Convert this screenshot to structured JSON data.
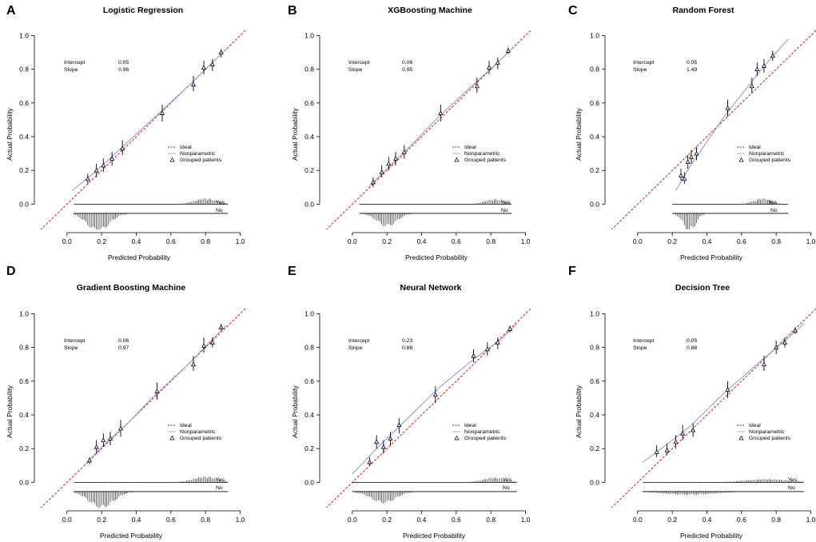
{
  "colors": {
    "ideal": "#e8292b",
    "nonparametric": "#8a93e8",
    "axis": "#000000",
    "points": "#000000",
    "legend_nonparam_swatch": "#999999"
  },
  "chart_data": [
    {
      "panel": "A",
      "type": "scatter",
      "title": "Logistic Regression",
      "xlabel": "Predicted Probability",
      "ylabel": "Actual Probability",
      "xlim": [
        -0.17,
        1.03
      ],
      "ylim": [
        -0.15,
        1.04
      ],
      "xticks": [
        "0.0",
        "0.2",
        "0.4",
        "0.6",
        "0.8",
        "1.0"
      ],
      "yticks": [
        "0.0",
        "0.2",
        "0.4",
        "0.6",
        "0.8",
        "1.0"
      ],
      "stats": {
        "intercept_label": "Intercept",
        "intercept_value": "0.05",
        "slope_label": "Slope",
        "slope_value": "0.96"
      },
      "legend": {
        "ideal": "Ideal",
        "nonparametric": "Nonparametric",
        "grouped": "Grouped patients"
      },
      "rug_labels": {
        "yes": "Yes",
        "no": "No"
      },
      "points": [
        {
          "x": 0.12,
          "y": 0.15,
          "lo": 0.12,
          "hi": 0.18
        },
        {
          "x": 0.17,
          "y": 0.2,
          "lo": 0.16,
          "hi": 0.24
        },
        {
          "x": 0.21,
          "y": 0.23,
          "lo": 0.19,
          "hi": 0.27
        },
        {
          "x": 0.26,
          "y": 0.27,
          "lo": 0.23,
          "hi": 0.31
        },
        {
          "x": 0.32,
          "y": 0.33,
          "lo": 0.29,
          "hi": 0.38
        },
        {
          "x": 0.55,
          "y": 0.54,
          "lo": 0.49,
          "hi": 0.59
        },
        {
          "x": 0.73,
          "y": 0.71,
          "lo": 0.67,
          "hi": 0.76
        },
        {
          "x": 0.79,
          "y": 0.81,
          "lo": 0.77,
          "hi": 0.85
        },
        {
          "x": 0.84,
          "y": 0.83,
          "lo": 0.79,
          "hi": 0.86
        },
        {
          "x": 0.89,
          "y": 0.9,
          "lo": 0.87,
          "hi": 0.92
        }
      ],
      "curve": {
        "x": [
          0.03,
          0.15,
          0.3,
          0.5,
          0.7,
          0.85,
          0.92
        ],
        "y": [
          0.08,
          0.18,
          0.32,
          0.51,
          0.7,
          0.85,
          0.92
        ]
      },
      "rug": {
        "yes_center": 0.8,
        "yes_spread": 0.09,
        "yes_amp": 0.035,
        "no_center": 0.18,
        "no_spread": 0.09,
        "no_amp": 0.11,
        "x_start": 0.04,
        "x_end": 0.93
      }
    },
    {
      "panel": "B",
      "type": "scatter",
      "title": "XGBoosting Machine",
      "xlabel": "Predicted Probability",
      "ylabel": "Actual Probability",
      "xlim": [
        -0.17,
        1.03
      ],
      "ylim": [
        -0.15,
        1.04
      ],
      "xticks": [
        "0.0",
        "0.2",
        "0.4",
        "0.6",
        "0.8",
        "1.0"
      ],
      "yticks": [
        "0.0",
        "0.2",
        "0.4",
        "0.6",
        "0.8",
        "1.0"
      ],
      "stats": {
        "intercept_label": "Intercept",
        "intercept_value": "0.06",
        "slope_label": "Slope",
        "slope_value": "0.95"
      },
      "legend": {
        "ideal": "Ideal",
        "nonparametric": "Nonparametric",
        "grouped": "Grouped patients"
      },
      "rug_labels": {
        "yes": "Yes",
        "no": "No"
      },
      "points": [
        {
          "x": 0.12,
          "y": 0.13,
          "lo": 0.1,
          "hi": 0.16
        },
        {
          "x": 0.17,
          "y": 0.19,
          "lo": 0.16,
          "hi": 0.23
        },
        {
          "x": 0.21,
          "y": 0.24,
          "lo": 0.2,
          "hi": 0.28
        },
        {
          "x": 0.25,
          "y": 0.27,
          "lo": 0.23,
          "hi": 0.31
        },
        {
          "x": 0.3,
          "y": 0.31,
          "lo": 0.27,
          "hi": 0.35
        },
        {
          "x": 0.51,
          "y": 0.54,
          "lo": 0.49,
          "hi": 0.59
        },
        {
          "x": 0.72,
          "y": 0.7,
          "lo": 0.66,
          "hi": 0.75
        },
        {
          "x": 0.79,
          "y": 0.81,
          "lo": 0.77,
          "hi": 0.85
        },
        {
          "x": 0.84,
          "y": 0.84,
          "lo": 0.8,
          "hi": 0.87
        },
        {
          "x": 0.9,
          "y": 0.91,
          "lo": 0.89,
          "hi": 0.93
        }
      ],
      "curve": {
        "x": [
          0.1,
          0.2,
          0.35,
          0.5,
          0.7,
          0.85,
          0.92
        ],
        "y": [
          0.11,
          0.21,
          0.36,
          0.52,
          0.71,
          0.85,
          0.92
        ]
      },
      "rug": {
        "yes_center": 0.82,
        "yes_spread": 0.08,
        "yes_amp": 0.03,
        "no_center": 0.2,
        "no_spread": 0.08,
        "no_amp": 0.08,
        "x_start": 0.04,
        "x_end": 0.92
      }
    },
    {
      "panel": "C",
      "type": "scatter",
      "title": "Random Forest",
      "xlabel": "Predicted Probability",
      "ylabel": "Actual Probability",
      "xlim": [
        -0.17,
        1.03
      ],
      "ylim": [
        -0.15,
        1.04
      ],
      "xticks": [
        "0.0",
        "0.2",
        "0.4",
        "0.6",
        "0.8",
        "1.0"
      ],
      "yticks": [
        "0.0",
        "0.2",
        "0.4",
        "0.6",
        "0.8",
        "1.0"
      ],
      "stats": {
        "intercept_label": "Intercept",
        "intercept_value": "0.05",
        "slope_label": "Slope",
        "slope_value": "1.49"
      },
      "legend": {
        "ideal": "Ideal",
        "nonparametric": "Nonparametric",
        "grouped": "Grouped patients"
      },
      "rug_labels": {
        "yes": "Yes",
        "no": "No"
      },
      "points": [
        {
          "x": 0.25,
          "y": 0.17,
          "lo": 0.14,
          "hi": 0.21
        },
        {
          "x": 0.27,
          "y": 0.15,
          "lo": 0.12,
          "hi": 0.19
        },
        {
          "x": 0.29,
          "y": 0.25,
          "lo": 0.21,
          "hi": 0.29
        },
        {
          "x": 0.31,
          "y": 0.28,
          "lo": 0.24,
          "hi": 0.32
        },
        {
          "x": 0.34,
          "y": 0.3,
          "lo": 0.26,
          "hi": 0.34
        },
        {
          "x": 0.52,
          "y": 0.57,
          "lo": 0.52,
          "hi": 0.62
        },
        {
          "x": 0.66,
          "y": 0.7,
          "lo": 0.66,
          "hi": 0.75
        },
        {
          "x": 0.69,
          "y": 0.8,
          "lo": 0.76,
          "hi": 0.84
        },
        {
          "x": 0.73,
          "y": 0.82,
          "lo": 0.78,
          "hi": 0.86
        },
        {
          "x": 0.78,
          "y": 0.88,
          "lo": 0.85,
          "hi": 0.91
        }
      ],
      "curve": {
        "x": [
          0.22,
          0.3,
          0.4,
          0.5,
          0.6,
          0.7,
          0.8,
          0.87
        ],
        "y": [
          0.08,
          0.22,
          0.37,
          0.52,
          0.65,
          0.78,
          0.9,
          0.98
        ]
      },
      "rug": {
        "yes_center": 0.72,
        "yes_spread": 0.07,
        "yes_amp": 0.035,
        "no_center": 0.3,
        "no_spread": 0.05,
        "no_amp": 0.11,
        "x_start": 0.2,
        "x_end": 0.87
      }
    },
    {
      "panel": "D",
      "type": "scatter",
      "title": "Gradient Boosting Machine",
      "xlabel": "Predicted Probability",
      "ylabel": "Actual Probability",
      "xlim": [
        -0.17,
        1.03
      ],
      "ylim": [
        -0.15,
        1.04
      ],
      "xticks": [
        "0.0",
        "0.2",
        "0.4",
        "0.6",
        "0.8",
        "1.0"
      ],
      "yticks": [
        "0.0",
        "0.2",
        "0.4",
        "0.6",
        "0.8",
        "1.0"
      ],
      "stats": {
        "intercept_label": "Intercept",
        "intercept_value": "0.06",
        "slope_label": "Slope",
        "slope_value": "0.97"
      },
      "legend": {
        "ideal": "Ideal",
        "nonparametric": "Nonparametric",
        "grouped": "Grouped patients"
      },
      "rug_labels": {
        "yes": "Yes",
        "no": "No"
      },
      "points": [
        {
          "x": 0.13,
          "y": 0.13,
          "lo": 0.11,
          "hi": 0.15
        },
        {
          "x": 0.17,
          "y": 0.21,
          "lo": 0.17,
          "hi": 0.25
        },
        {
          "x": 0.21,
          "y": 0.25,
          "lo": 0.21,
          "hi": 0.29
        },
        {
          "x": 0.25,
          "y": 0.26,
          "lo": 0.22,
          "hi": 0.3
        },
        {
          "x": 0.31,
          "y": 0.32,
          "lo": 0.27,
          "hi": 0.37
        },
        {
          "x": 0.52,
          "y": 0.54,
          "lo": 0.49,
          "hi": 0.59
        },
        {
          "x": 0.73,
          "y": 0.7,
          "lo": 0.66,
          "hi": 0.75
        },
        {
          "x": 0.79,
          "y": 0.81,
          "lo": 0.77,
          "hi": 0.86
        },
        {
          "x": 0.84,
          "y": 0.83,
          "lo": 0.8,
          "hi": 0.86
        },
        {
          "x": 0.89,
          "y": 0.92,
          "lo": 0.9,
          "hi": 0.94
        }
      ],
      "curve": {
        "x": [
          0.1,
          0.2,
          0.35,
          0.5,
          0.7,
          0.85,
          0.92
        ],
        "y": [
          0.1,
          0.21,
          0.35,
          0.51,
          0.7,
          0.86,
          0.93
        ]
      },
      "rug": {
        "yes_center": 0.8,
        "yes_spread": 0.1,
        "yes_amp": 0.035,
        "no_center": 0.2,
        "no_spread": 0.1,
        "no_amp": 0.1,
        "x_start": 0.04,
        "x_end": 0.93
      }
    },
    {
      "panel": "E",
      "type": "scatter",
      "title": "Neural Network",
      "xlabel": "Predicted Probability",
      "ylabel": "Actual Probability",
      "xlim": [
        -0.17,
        1.03
      ],
      "ylim": [
        -0.15,
        1.04
      ],
      "xticks": [
        "0.0",
        "0.2",
        "0.4",
        "0.6",
        "0.8",
        "1.0"
      ],
      "yticks": [
        "0.0",
        "0.2",
        "0.4",
        "0.6",
        "0.8",
        "1.0"
      ],
      "stats": {
        "intercept_label": "Intercept",
        "intercept_value": "0.23",
        "slope_label": "Slope",
        "slope_value": "0.88"
      },
      "legend": {
        "ideal": "Ideal",
        "nonparametric": "Nonparametric",
        "grouped": "Grouped patients"
      },
      "rug_labels": {
        "yes": "Yes",
        "no": "No"
      },
      "points": [
        {
          "x": 0.1,
          "y": 0.12,
          "lo": 0.1,
          "hi": 0.15
        },
        {
          "x": 0.14,
          "y": 0.24,
          "lo": 0.2,
          "hi": 0.28
        },
        {
          "x": 0.18,
          "y": 0.21,
          "lo": 0.17,
          "hi": 0.25
        },
        {
          "x": 0.22,
          "y": 0.26,
          "lo": 0.22,
          "hi": 0.3
        },
        {
          "x": 0.27,
          "y": 0.34,
          "lo": 0.29,
          "hi": 0.38
        },
        {
          "x": 0.48,
          "y": 0.52,
          "lo": 0.47,
          "hi": 0.57
        },
        {
          "x": 0.7,
          "y": 0.75,
          "lo": 0.71,
          "hi": 0.79
        },
        {
          "x": 0.78,
          "y": 0.79,
          "lo": 0.75,
          "hi": 0.83
        },
        {
          "x": 0.84,
          "y": 0.83,
          "lo": 0.79,
          "hi": 0.86
        },
        {
          "x": 0.91,
          "y": 0.91,
          "lo": 0.89,
          "hi": 0.93
        }
      ],
      "curve": {
        "x": [
          0.0,
          0.15,
          0.3,
          0.5,
          0.7,
          0.85,
          0.95
        ],
        "y": [
          0.05,
          0.21,
          0.36,
          0.56,
          0.73,
          0.84,
          0.94
        ]
      },
      "rug": {
        "yes_center": 0.82,
        "yes_spread": 0.09,
        "yes_amp": 0.03,
        "no_center": 0.18,
        "no_spread": 0.1,
        "no_amp": 0.07,
        "x_start": 0.0,
        "x_end": 0.95
      }
    },
    {
      "panel": "F",
      "type": "scatter",
      "title": "Decision Tree",
      "xlabel": "Predicted Probability",
      "ylabel": "Actual Probability",
      "xlim": [
        -0.17,
        1.03
      ],
      "ylim": [
        -0.15,
        1.04
      ],
      "xticks": [
        "0.0",
        "0.2",
        "0.4",
        "0.6",
        "0.8",
        "1.0"
      ],
      "yticks": [
        "0.0",
        "0.2",
        "0.4",
        "0.6",
        "0.8",
        "1.0"
      ],
      "stats": {
        "intercept_label": "Intercept",
        "intercept_value": "0.05",
        "slope_label": "Slope",
        "slope_value": "0.88"
      },
      "legend": {
        "ideal": "Ideal",
        "nonparametric": "Nonparametric",
        "grouped": "Grouped patients"
      },
      "rug_labels": {
        "yes": "Yes",
        "no": "No"
      },
      "points": [
        {
          "x": 0.11,
          "y": 0.18,
          "lo": 0.15,
          "hi": 0.22
        },
        {
          "x": 0.17,
          "y": 0.19,
          "lo": 0.16,
          "hi": 0.23
        },
        {
          "x": 0.22,
          "y": 0.24,
          "lo": 0.2,
          "hi": 0.28
        },
        {
          "x": 0.26,
          "y": 0.29,
          "lo": 0.25,
          "hi": 0.34
        },
        {
          "x": 0.32,
          "y": 0.31,
          "lo": 0.27,
          "hi": 0.35
        },
        {
          "x": 0.52,
          "y": 0.55,
          "lo": 0.5,
          "hi": 0.6
        },
        {
          "x": 0.73,
          "y": 0.7,
          "lo": 0.66,
          "hi": 0.75
        },
        {
          "x": 0.8,
          "y": 0.8,
          "lo": 0.76,
          "hi": 0.84
        },
        {
          "x": 0.85,
          "y": 0.83,
          "lo": 0.8,
          "hi": 0.86
        },
        {
          "x": 0.91,
          "y": 0.9,
          "lo": 0.88,
          "hi": 0.92
        }
      ],
      "curve": {
        "x": [
          0.03,
          0.15,
          0.3,
          0.5,
          0.7,
          0.85,
          0.96
        ],
        "y": [
          0.12,
          0.21,
          0.33,
          0.53,
          0.71,
          0.84,
          0.94
        ]
      },
      "rug": {
        "yes_center": 0.75,
        "yes_spread": 0.18,
        "yes_amp": 0.02,
        "no_center": 0.3,
        "no_spread": 0.2,
        "no_amp": 0.02,
        "x_start": 0.03,
        "x_end": 0.96
      }
    }
  ]
}
